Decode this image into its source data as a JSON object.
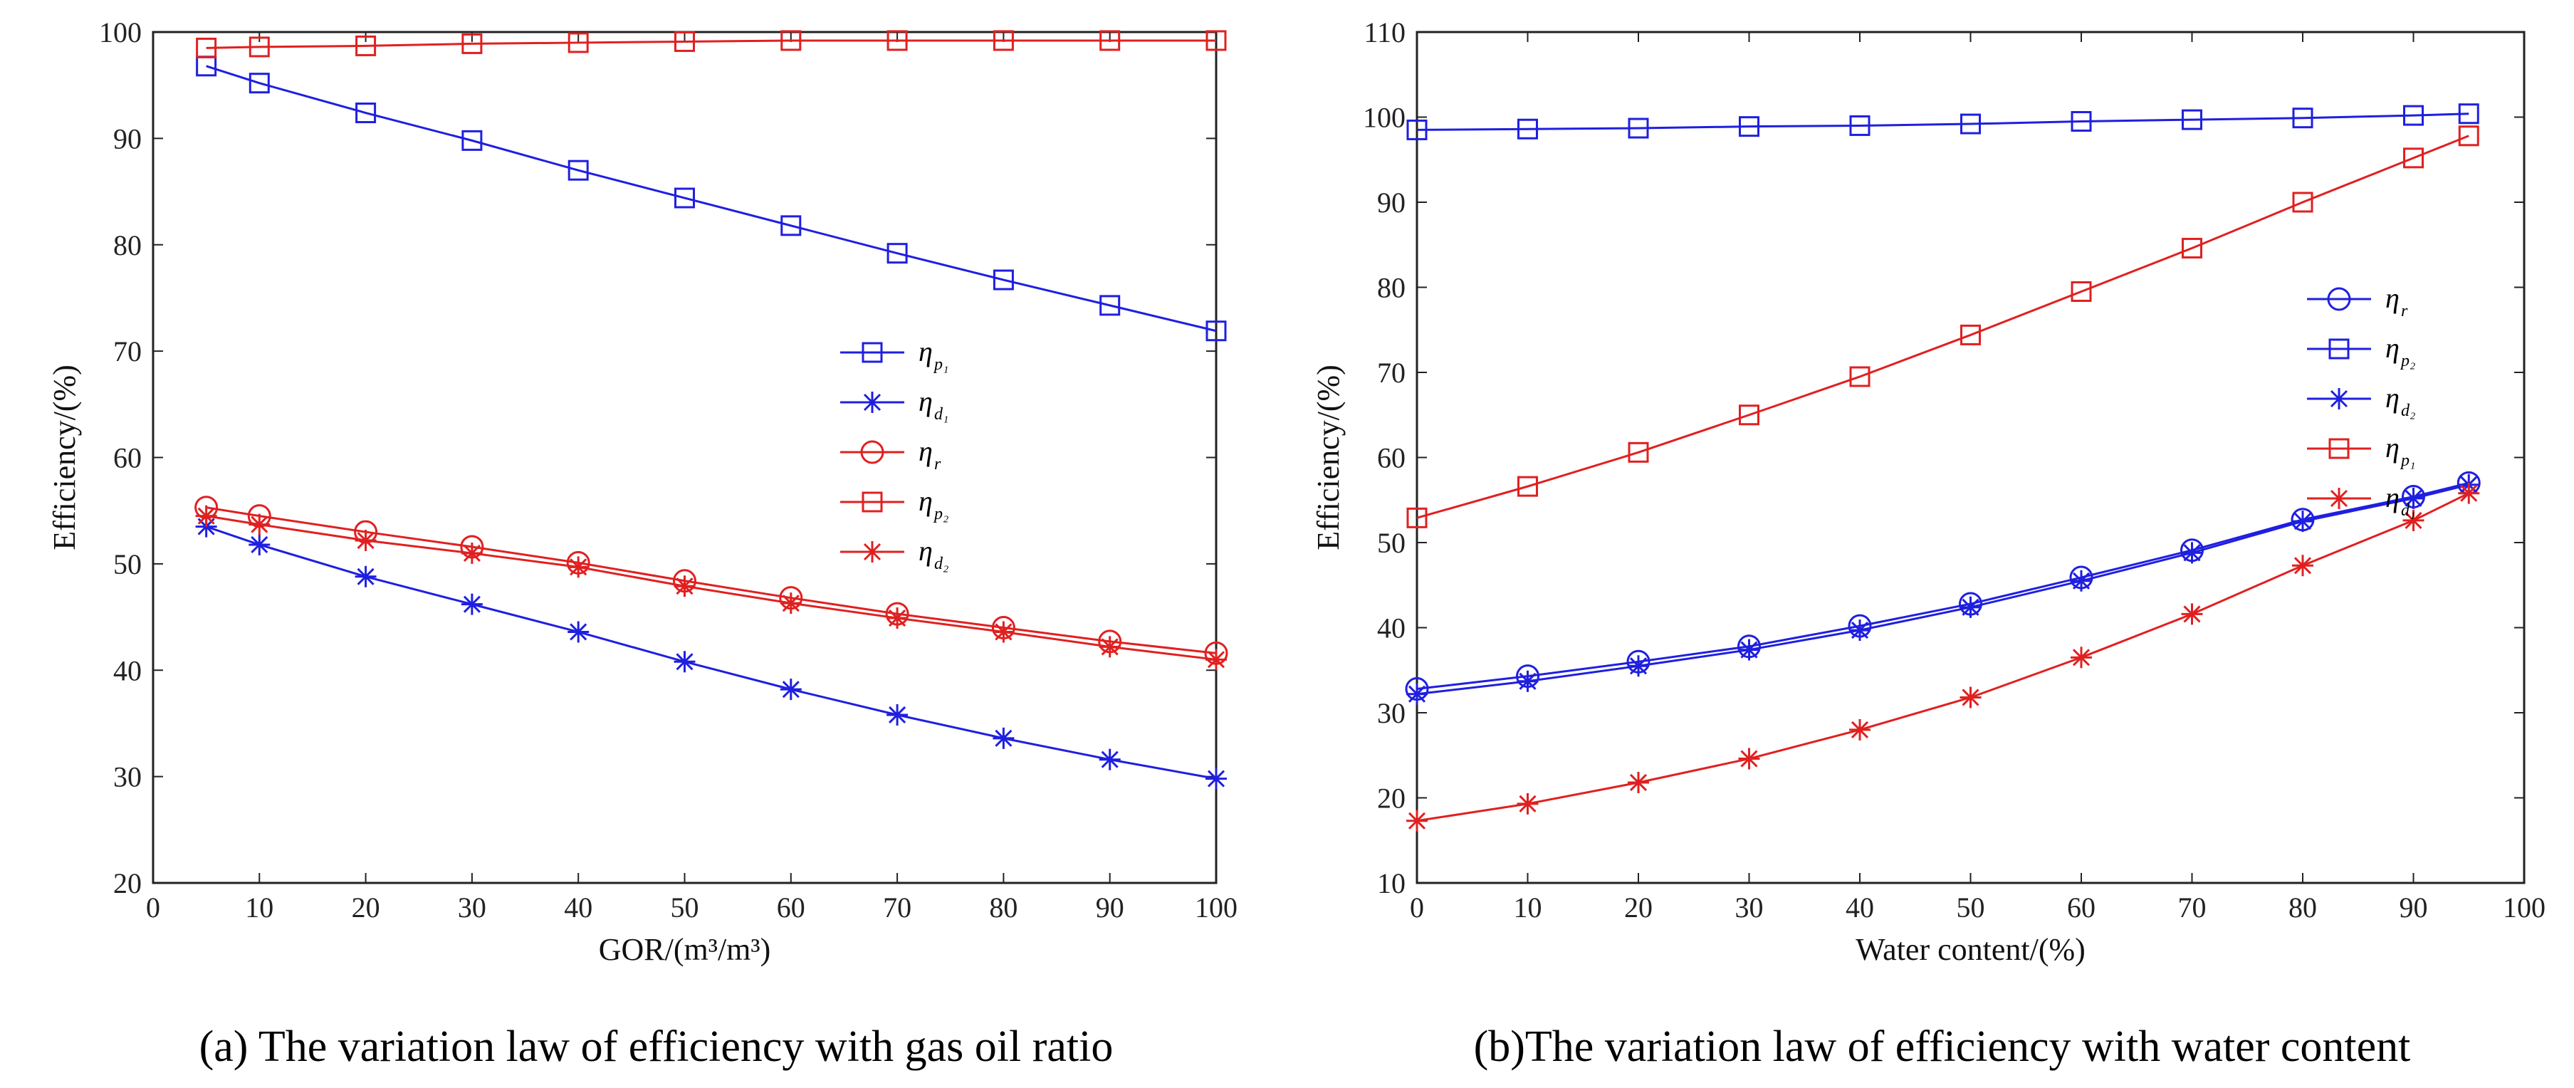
{
  "chart_data": [
    {
      "type": "line",
      "caption": "(a) The variation law of efficiency with gas oil ratio",
      "xlabel": "GOR/(m³/m³)",
      "ylabel": "Efficiency/(%)",
      "xlim": [
        0,
        100
      ],
      "ylim": [
        20,
        100
      ],
      "xticks": [
        0,
        10,
        20,
        30,
        40,
        50,
        60,
        70,
        80,
        90,
        100
      ],
      "yticks": [
        20,
        30,
        40,
        50,
        60,
        70,
        80,
        90,
        100
      ],
      "legend_position": "center-right",
      "x": [
        5,
        10,
        20,
        30,
        40,
        50,
        60,
        70,
        80,
        90,
        100
      ],
      "series": [
        {
          "name": "η",
          "sub": "p₁",
          "color": "#1f1fe0",
          "marker": "square",
          "values": [
            96.8,
            95.2,
            92.4,
            89.8,
            87.0,
            84.4,
            81.8,
            79.2,
            76.7,
            74.3,
            71.9
          ]
        },
        {
          "name": "η",
          "sub": "d₁",
          "color": "#1f1fe0",
          "marker": "star",
          "values": [
            53.5,
            51.8,
            48.8,
            46.2,
            43.6,
            40.8,
            38.2,
            35.8,
            33.6,
            31.6,
            29.8
          ]
        },
        {
          "name": "η",
          "sub": "r",
          "color": "#e02020",
          "marker": "circle",
          "values": [
            55.3,
            54.5,
            53.0,
            51.6,
            50.1,
            48.4,
            46.8,
            45.3,
            44.0,
            42.7,
            41.6
          ]
        },
        {
          "name": "η",
          "sub": "p₂",
          "color": "#e02020",
          "marker": "square",
          "values": [
            98.5,
            98.6,
            98.7,
            98.9,
            99.0,
            99.1,
            99.2,
            99.2,
            99.2,
            99.2,
            99.2
          ]
        },
        {
          "name": "η",
          "sub": "d₂",
          "color": "#e02020",
          "marker": "star",
          "values": [
            54.5,
            53.7,
            52.2,
            51.0,
            49.7,
            47.9,
            46.3,
            44.9,
            43.6,
            42.2,
            41.0
          ]
        }
      ]
    },
    {
      "type": "line",
      "caption": "(b)The variation law of efficiency with water content",
      "xlabel": "Water content/(%)",
      "ylabel": "Efficiency/(%)",
      "xlim": [
        0,
        100
      ],
      "ylim": [
        10,
        110
      ],
      "xticks": [
        0,
        10,
        20,
        30,
        40,
        50,
        60,
        70,
        80,
        90,
        100
      ],
      "yticks": [
        10,
        20,
        30,
        40,
        50,
        60,
        70,
        80,
        90,
        100,
        110
      ],
      "legend_position": "center-right",
      "x": [
        0,
        10,
        20,
        30,
        40,
        50,
        60,
        70,
        80,
        90,
        95
      ],
      "series": [
        {
          "name": "η",
          "sub": "r",
          "color": "#1f1fe0",
          "marker": "circle",
          "values": [
            32.8,
            34.3,
            36.0,
            37.8,
            40.2,
            42.8,
            45.9,
            49.1,
            52.7,
            55.4,
            57.0
          ]
        },
        {
          "name": "η",
          "sub": "p₂",
          "color": "#1f1fe0",
          "marker": "square",
          "values": [
            98.5,
            98.6,
            98.7,
            98.9,
            99.0,
            99.2,
            99.5,
            99.7,
            99.9,
            100.2,
            100.4
          ]
        },
        {
          "name": "η",
          "sub": "d₂",
          "color": "#1f1fe0",
          "marker": "star",
          "values": [
            32.2,
            33.7,
            35.5,
            37.4,
            39.7,
            42.4,
            45.5,
            48.8,
            52.5,
            55.2,
            56.8
          ]
        },
        {
          "name": "η",
          "sub": "p₁",
          "color": "#e02020",
          "marker": "square",
          "values": [
            52.9,
            56.6,
            60.6,
            65.0,
            69.5,
            74.4,
            79.5,
            84.6,
            90.0,
            95.2,
            97.8
          ]
        },
        {
          "name": "η",
          "sub": "d₁",
          "color": "#e02020",
          "marker": "star",
          "values": [
            17.3,
            19.3,
            21.8,
            24.6,
            28.0,
            31.8,
            36.5,
            41.6,
            47.3,
            52.6,
            55.8
          ]
        }
      ]
    }
  ]
}
